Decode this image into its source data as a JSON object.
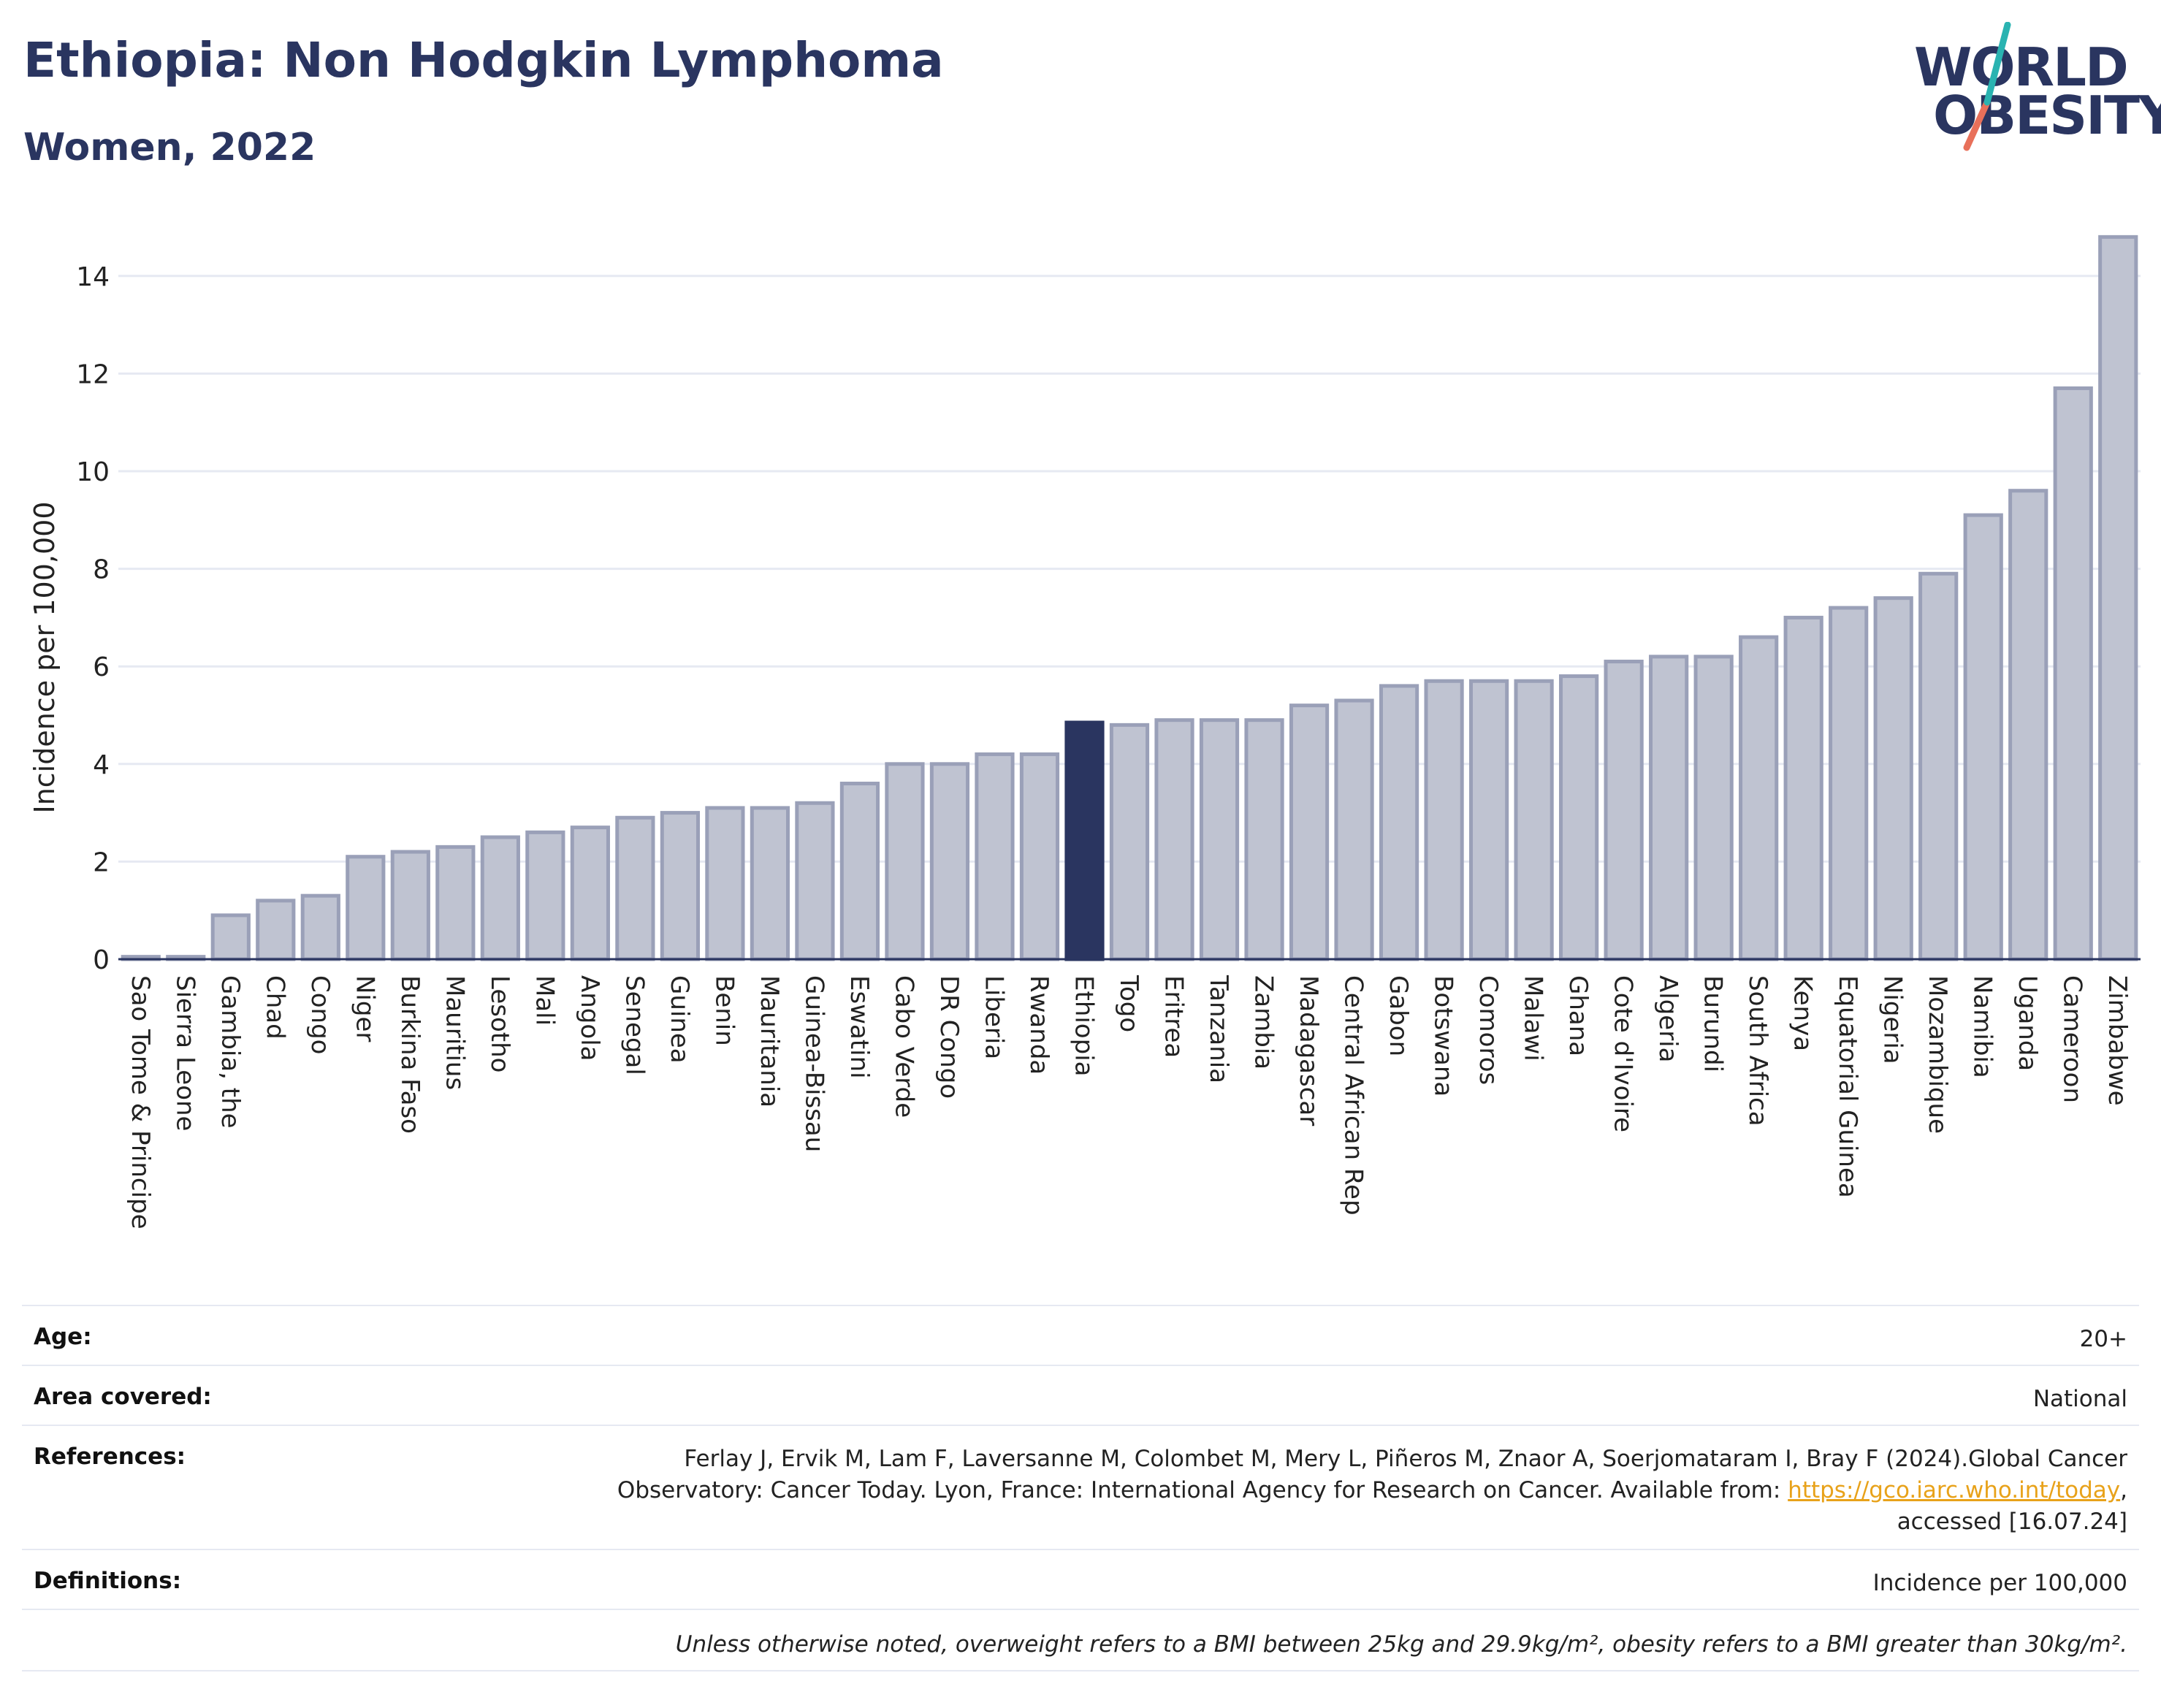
{
  "header": {
    "title": "Ethiopia: Non Hodgkin Lymphoma",
    "subtitle": "Women, 2022"
  },
  "logo": {
    "line1": "WORLD",
    "line2": "OBESITY",
    "colors": {
      "text": "#2a3560",
      "slash_top": "#2ab3b1",
      "slash_bottom": "#e8705a"
    }
  },
  "colors": {
    "bar_fill": "#bfc3d1",
    "bar_stroke": "#9aa0b8",
    "highlight": "#2a3560",
    "grid": "#e6e9f2",
    "link": "#e8a21a"
  },
  "chart_data": {
    "type": "bar",
    "ylabel": "Incidence per 100,000",
    "ylim": [
      0,
      14.8
    ],
    "yticks": [
      0,
      2,
      4,
      6,
      8,
      10,
      12,
      14
    ],
    "grid": true,
    "highlight": "Ethiopia",
    "categories": [
      "Sao Tome & Principe",
      "Sierra Leone",
      "Gambia, the",
      "Chad",
      "Congo",
      "Niger",
      "Burkina Faso",
      "Mauritius",
      "Lesotho",
      "Mali",
      "Angola",
      "Senegal",
      "Guinea",
      "Benin",
      "Mauritania",
      "Guinea-Bissau",
      "Eswatini",
      "Cabo Verde",
      "DR Congo",
      "Liberia",
      "Rwanda",
      "Ethiopia",
      "Togo",
      "Eritrea",
      "Tanzania",
      "Zambia",
      "Madagascar",
      "Central African Rep",
      "Gabon",
      "Botswana",
      "Comoros",
      "Malawi",
      "Ghana",
      "Cote d'Ivoire",
      "Algeria",
      "Burundi",
      "South Africa",
      "Kenya",
      "Equatorial Guinea",
      "Nigeria",
      "Mozambique",
      "Namibia",
      "Uganda",
      "Cameroon",
      "Zimbabwe"
    ],
    "values": [
      0.05,
      0.05,
      0.9,
      1.2,
      1.3,
      2.1,
      2.2,
      2.3,
      2.5,
      2.6,
      2.7,
      2.9,
      3.0,
      3.1,
      3.1,
      3.2,
      3.6,
      4.0,
      4.0,
      4.2,
      4.2,
      4.85,
      4.8,
      4.9,
      4.9,
      4.9,
      5.2,
      5.3,
      5.6,
      5.7,
      5.7,
      5.7,
      5.8,
      6.1,
      6.2,
      6.2,
      6.6,
      7.0,
      7.2,
      7.4,
      7.9,
      9.1,
      9.6,
      11.7,
      14.8
    ]
  },
  "info": {
    "age_label": "Age:",
    "age_value": "20+",
    "area_label": "Area covered:",
    "area_value": "National",
    "references_label": "References:",
    "references_line1": "Ferlay J, Ervik M, Lam F, Laversanne M, Colombet M, Mery L, Piñeros M, Znaor A, Soerjomataram I, Bray F (2024).Global Cancer",
    "references_line2_pre": "Observatory: Cancer Today. Lyon, France: International Agency for Research on Cancer. Available from: ",
    "references_link": "https://gco.iarc.who.int/today",
    "references_line2_post": ",",
    "references_line3": "accessed [16.07.24]",
    "definitions_label": "Definitions:",
    "definitions_value": "Incidence per 100,000",
    "footnote": "Unless otherwise noted, overweight refers to a BMI between 25kg and 29.9kg/m², obesity refers to a BMI greater than 30kg/m²."
  }
}
